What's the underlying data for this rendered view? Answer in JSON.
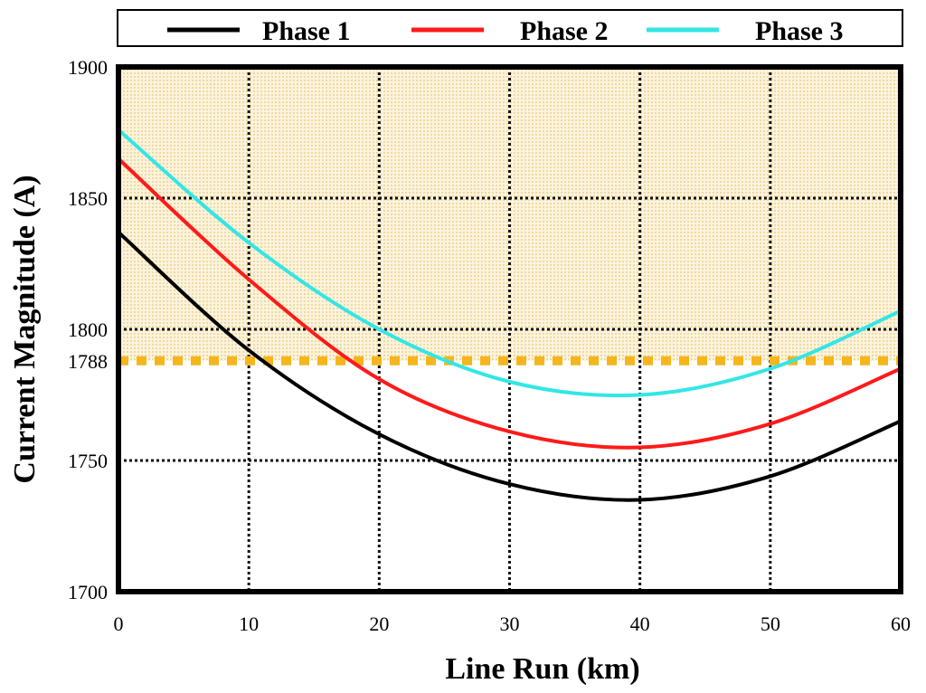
{
  "chart_data": {
    "type": "line",
    "title": "",
    "xlabel": "Line Run (km)",
    "ylabel": "Current Magnitude (A)",
    "xlim": [
      0,
      60
    ],
    "ylim": [
      1700,
      1900
    ],
    "xticks": [
      0,
      10,
      20,
      30,
      40,
      50,
      60
    ],
    "yticks": [
      1700,
      1750,
      1788,
      1800,
      1850,
      1900
    ],
    "grid": true,
    "legend_position": "top",
    "threshold": {
      "value": 1788,
      "color": "#f5b51c",
      "style": "dashed"
    },
    "shaded_region": {
      "from": 1788,
      "to": 1900,
      "color": "#f7e9c2"
    },
    "series": [
      {
        "name": "Phase 1",
        "color": "#000000",
        "x": [
          0,
          10,
          20,
          30,
          40,
          50,
          60
        ],
        "y": [
          1837,
          1792,
          1760,
          1741,
          1735,
          1744,
          1765
        ]
      },
      {
        "name": "Phase 2",
        "color": "#ff1a1a",
        "x": [
          0,
          10,
          20,
          30,
          40,
          50,
          60
        ],
        "y": [
          1865,
          1819,
          1781,
          1761,
          1755,
          1764,
          1785
        ]
      },
      {
        "name": "Phase 3",
        "color": "#33e6e6",
        "x": [
          0,
          10,
          20,
          30,
          40,
          50,
          60
        ],
        "y": [
          1876,
          1833,
          1800,
          1780,
          1775,
          1785,
          1807
        ]
      }
    ]
  }
}
